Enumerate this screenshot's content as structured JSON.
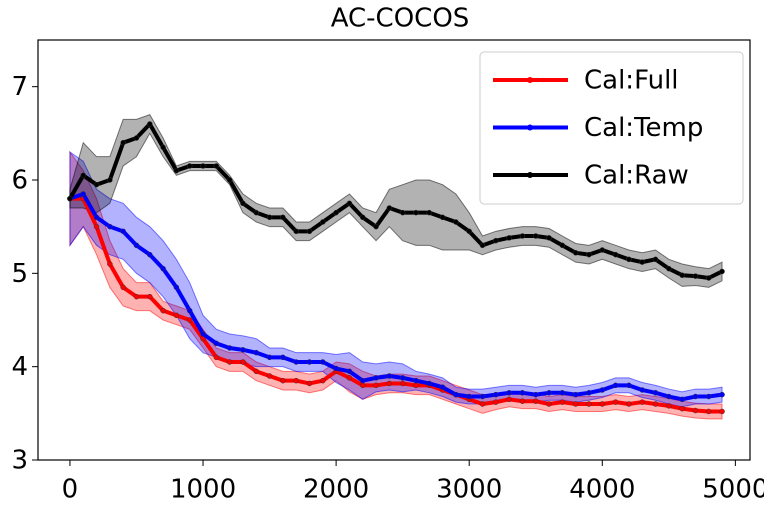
{
  "chart_data": {
    "type": "line",
    "title": "AC-COCOS",
    "x": [
      0,
      100,
      200,
      300,
      400,
      500,
      600,
      700,
      800,
      900,
      1000,
      1100,
      1200,
      1300,
      1400,
      1500,
      1600,
      1700,
      1800,
      1900,
      2000,
      2100,
      2200,
      2300,
      2400,
      2500,
      2600,
      2700,
      2800,
      2900,
      3000,
      3100,
      3200,
      3300,
      3400,
      3500,
      3600,
      3700,
      3800,
      3900,
      4000,
      4100,
      4200,
      4300,
      4400,
      4500,
      4600,
      4700,
      4800,
      4900
    ],
    "series": [
      {
        "name": "Cal:Full",
        "color": "#ff0000",
        "values": [
          5.8,
          5.8,
          5.5,
          5.1,
          4.85,
          4.75,
          4.75,
          4.6,
          4.55,
          4.5,
          4.3,
          4.1,
          4.05,
          4.05,
          3.95,
          3.9,
          3.85,
          3.85,
          3.82,
          3.85,
          3.95,
          3.88,
          3.8,
          3.8,
          3.82,
          3.82,
          3.8,
          3.8,
          3.75,
          3.7,
          3.65,
          3.6,
          3.62,
          3.65,
          3.63,
          3.63,
          3.6,
          3.62,
          3.6,
          3.6,
          3.6,
          3.62,
          3.6,
          3.62,
          3.6,
          3.58,
          3.55,
          3.53,
          3.52,
          3.52
        ],
        "errors": [
          0.5,
          0.3,
          0.3,
          0.25,
          0.2,
          0.15,
          0.15,
          0.1,
          0.1,
          0.1,
          0.1,
          0.1,
          0.1,
          0.1,
          0.1,
          0.1,
          0.1,
          0.1,
          0.1,
          0.1,
          0.1,
          0.15,
          0.15,
          0.1,
          0.1,
          0.1,
          0.1,
          0.1,
          0.1,
          0.1,
          0.1,
          0.1,
          0.08,
          0.08,
          0.08,
          0.08,
          0.08,
          0.08,
          0.08,
          0.08,
          0.08,
          0.08,
          0.08,
          0.08,
          0.08,
          0.08,
          0.08,
          0.08,
          0.08,
          0.08
        ]
      },
      {
        "name": "Cal:Temp",
        "color": "#0000ff",
        "values": [
          5.8,
          5.85,
          5.6,
          5.5,
          5.45,
          5.3,
          5.2,
          5.05,
          4.85,
          4.6,
          4.35,
          4.25,
          4.2,
          4.18,
          4.15,
          4.1,
          4.1,
          4.05,
          4.05,
          4.05,
          3.98,
          3.95,
          3.85,
          3.88,
          3.9,
          3.88,
          3.85,
          3.82,
          3.78,
          3.7,
          3.68,
          3.68,
          3.7,
          3.72,
          3.72,
          3.7,
          3.72,
          3.72,
          3.7,
          3.72,
          3.75,
          3.8,
          3.8,
          3.75,
          3.72,
          3.68,
          3.65,
          3.68,
          3.68,
          3.7
        ],
        "errors": [
          0.5,
          0.35,
          0.3,
          0.3,
          0.3,
          0.3,
          0.3,
          0.3,
          0.3,
          0.3,
          0.2,
          0.15,
          0.15,
          0.15,
          0.15,
          0.1,
          0.1,
          0.1,
          0.1,
          0.1,
          0.15,
          0.2,
          0.2,
          0.15,
          0.15,
          0.15,
          0.1,
          0.1,
          0.1,
          0.08,
          0.08,
          0.08,
          0.08,
          0.08,
          0.08,
          0.08,
          0.08,
          0.08,
          0.08,
          0.08,
          0.08,
          0.08,
          0.08,
          0.08,
          0.08,
          0.08,
          0.08,
          0.08,
          0.08,
          0.08
        ]
      },
      {
        "name": "Cal:Raw",
        "color": "#000000",
        "values": [
          5.8,
          6.05,
          5.95,
          6.0,
          6.4,
          6.45,
          6.6,
          6.35,
          6.1,
          6.15,
          6.15,
          6.15,
          6.0,
          5.75,
          5.65,
          5.6,
          5.6,
          5.45,
          5.45,
          5.55,
          5.65,
          5.75,
          5.6,
          5.5,
          5.7,
          5.65,
          5.65,
          5.65,
          5.6,
          5.55,
          5.45,
          5.3,
          5.35,
          5.38,
          5.4,
          5.4,
          5.38,
          5.3,
          5.22,
          5.2,
          5.25,
          5.2,
          5.15,
          5.12,
          5.15,
          5.05,
          4.98,
          4.97,
          4.95,
          5.02
        ],
        "errors": [
          0.1,
          0.35,
          0.3,
          0.25,
          0.25,
          0.2,
          0.1,
          0.1,
          0.05,
          0.05,
          0.05,
          0.05,
          0.05,
          0.1,
          0.1,
          0.1,
          0.1,
          0.1,
          0.1,
          0.1,
          0.1,
          0.1,
          0.1,
          0.15,
          0.2,
          0.3,
          0.35,
          0.35,
          0.35,
          0.3,
          0.2,
          0.1,
          0.1,
          0.1,
          0.1,
          0.1,
          0.1,
          0.1,
          0.1,
          0.1,
          0.1,
          0.1,
          0.1,
          0.1,
          0.1,
          0.1,
          0.12,
          0.1,
          0.1,
          0.1
        ]
      }
    ],
    "xlim": [
      -240,
      5110
    ],
    "xticks": [
      0,
      1000,
      2000,
      3000,
      4000,
      5000
    ],
    "ylim": [
      3,
      7.5
    ],
    "yticks": [
      3,
      4,
      5,
      6,
      7
    ],
    "legend": "upper right"
  }
}
